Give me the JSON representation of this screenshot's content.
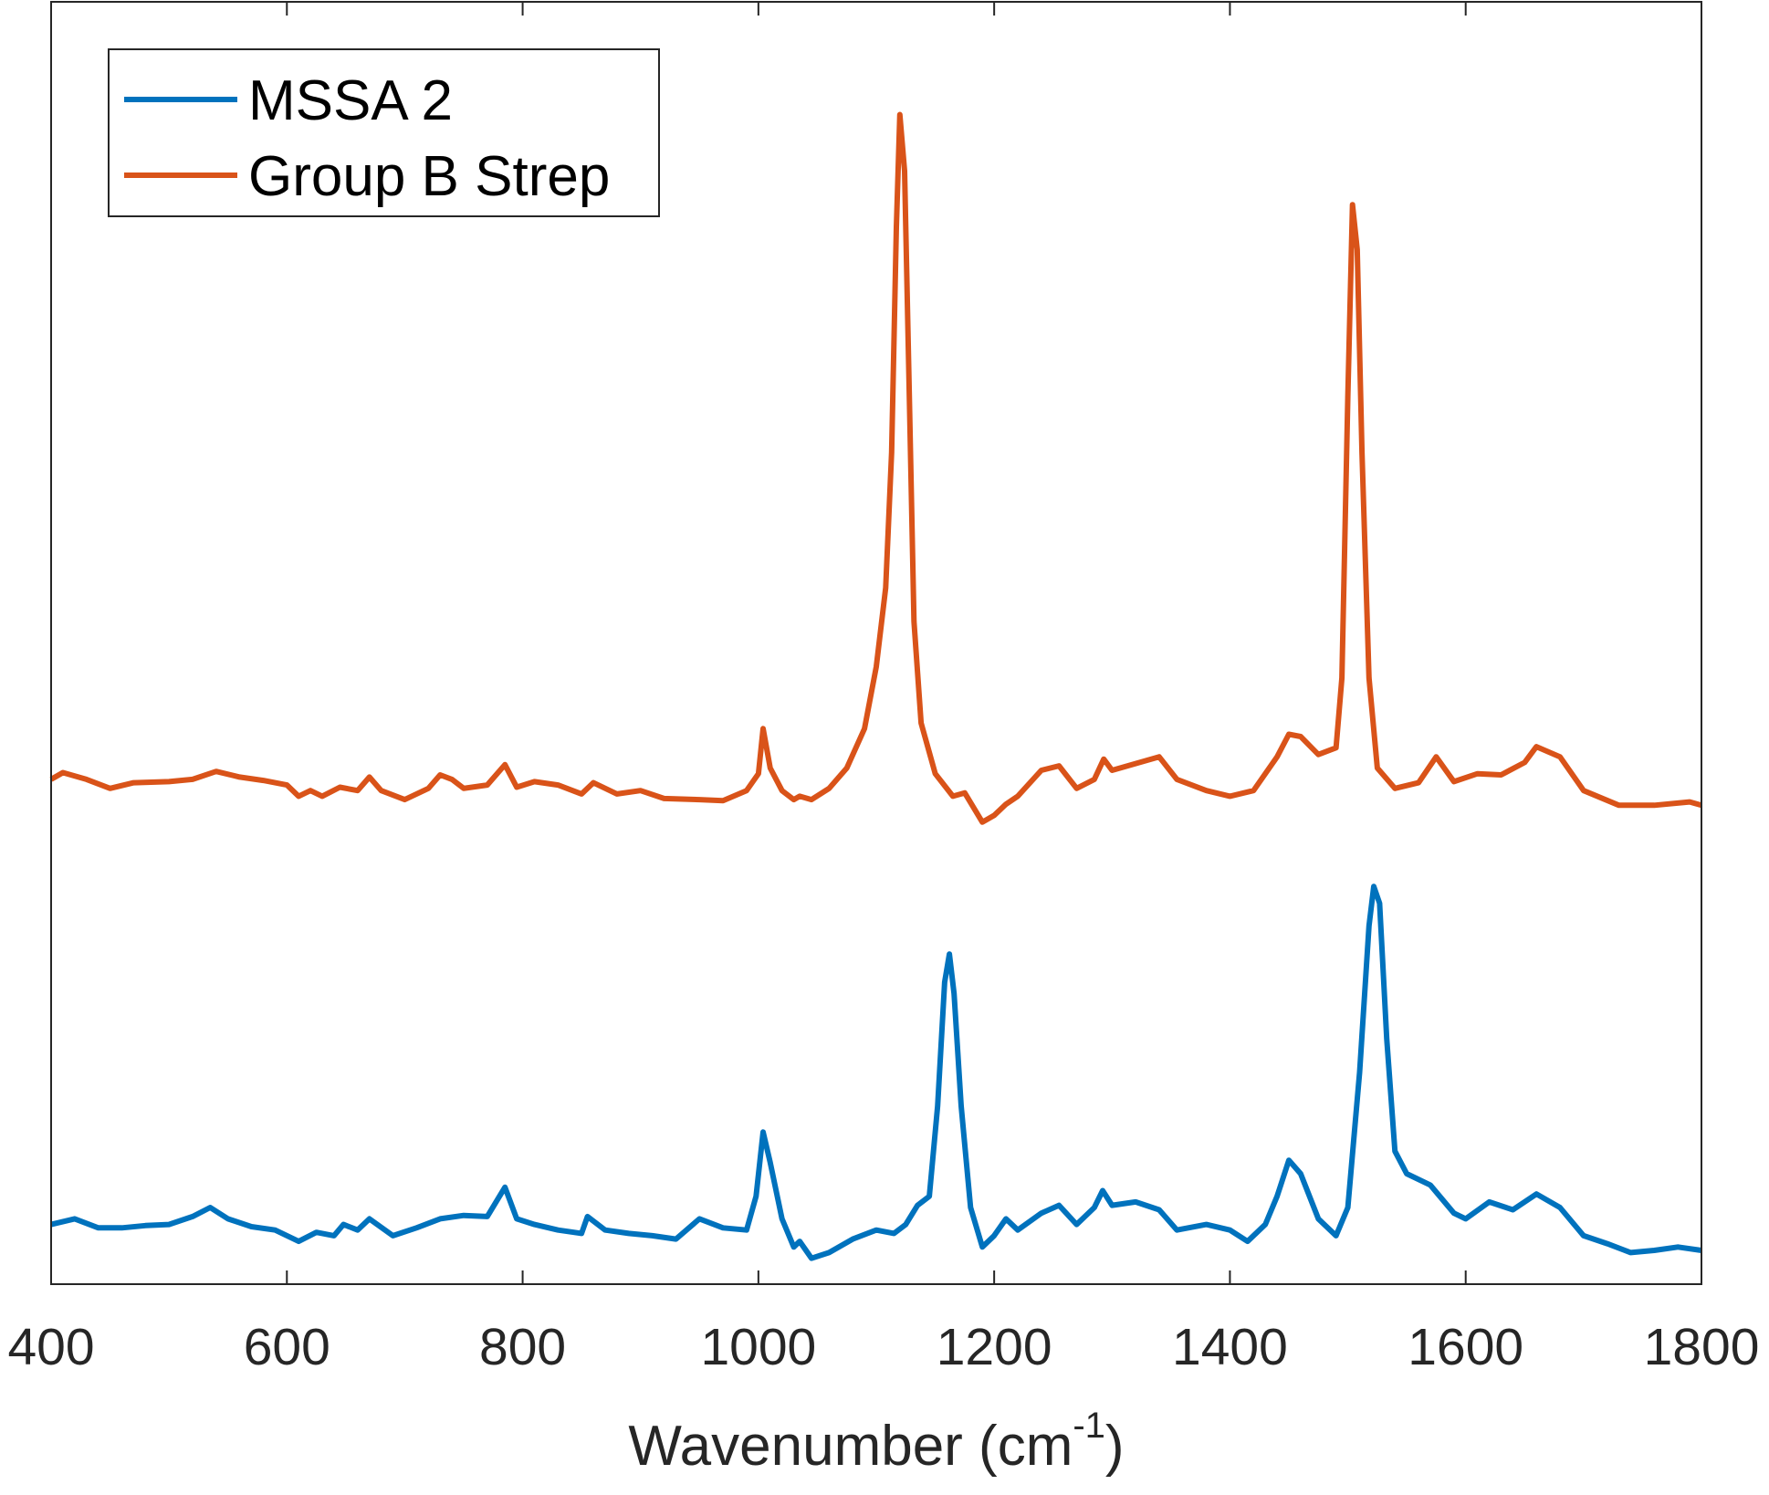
{
  "chart_data": {
    "type": "line",
    "x_label": {
      "text": "Wavenumber (cm",
      "superscript": "-1",
      "suffix": ")"
    },
    "xlim": [
      400,
      1800
    ],
    "xticks": [
      400,
      600,
      800,
      1000,
      1200,
      1400,
      1600,
      1800
    ],
    "ylim": [
      0,
      1138
    ],
    "legend": "upper-left",
    "series": [
      {
        "name": "MSSA 2",
        "color": "#0072BD",
        "x": [
          400,
          420,
          440,
          460,
          480,
          500,
          520,
          535,
          550,
          570,
          590,
          610,
          625,
          640,
          648,
          660,
          670,
          690,
          710,
          730,
          750,
          770,
          785,
          795,
          810,
          830,
          850,
          855,
          870,
          890,
          910,
          930,
          950,
          970,
          990,
          998,
          1004,
          1010,
          1020,
          1030,
          1035,
          1045,
          1060,
          1080,
          1100,
          1115,
          1125,
          1135,
          1145,
          1152,
          1158,
          1162,
          1166,
          1172,
          1180,
          1190,
          1200,
          1210,
          1220,
          1240,
          1255,
          1270,
          1285,
          1292,
          1300,
          1320,
          1340,
          1355,
          1380,
          1400,
          1415,
          1430,
          1440,
          1450,
          1460,
          1475,
          1490,
          1500,
          1510,
          1518,
          1522,
          1527,
          1533,
          1540,
          1550,
          1570,
          1590,
          1600,
          1620,
          1640,
          1660,
          1680,
          1700,
          1720,
          1740,
          1760,
          1780,
          1800
        ],
        "values": [
          53,
          58,
          50,
          50,
          52,
          53,
          60,
          68,
          58,
          51,
          48,
          38,
          46,
          43,
          53,
          48,
          58,
          43,
          50,
          58,
          61,
          60,
          86,
          58,
          53,
          48,
          45,
          60,
          48,
          45,
          43,
          40,
          58,
          50,
          48,
          78,
          135,
          108,
          58,
          33,
          38,
          23,
          28,
          40,
          48,
          45,
          53,
          70,
          78,
          158,
          268,
          293,
          258,
          158,
          68,
          33,
          43,
          58,
          48,
          63,
          70,
          53,
          68,
          83,
          70,
          73,
          66,
          48,
          53,
          48,
          38,
          53,
          78,
          110,
          98,
          58,
          43,
          68,
          188,
          318,
          353,
          338,
          218,
          118,
          98,
          88,
          63,
          58,
          73,
          66,
          80,
          68,
          43,
          36,
          28,
          30,
          33,
          30
        ]
      },
      {
        "name": "Group B Strep",
        "color": "#D95319",
        "x": [
          400,
          410,
          430,
          450,
          470,
          500,
          520,
          540,
          560,
          580,
          600,
          610,
          620,
          630,
          645,
          660,
          670,
          680,
          700,
          720,
          730,
          740,
          750,
          770,
          785,
          795,
          810,
          830,
          850,
          860,
          880,
          900,
          920,
          950,
          970,
          990,
          1000,
          1004,
          1010,
          1020,
          1030,
          1035,
          1045,
          1060,
          1075,
          1090,
          1100,
          1108,
          1113,
          1117,
          1120,
          1124,
          1128,
          1132,
          1138,
          1150,
          1165,
          1175,
          1190,
          1200,
          1210,
          1220,
          1240,
          1255,
          1270,
          1285,
          1293,
          1300,
          1320,
          1340,
          1355,
          1380,
          1400,
          1420,
          1440,
          1450,
          1460,
          1475,
          1490,
          1495,
          1500,
          1504,
          1508,
          1512,
          1518,
          1525,
          1540,
          1560,
          1575,
          1590,
          1610,
          1630,
          1650,
          1660,
          1680,
          1700,
          1730,
          1760,
          1790,
          1800
        ],
        "values": [
          448,
          454,
          448,
          440,
          445,
          446,
          448,
          455,
          450,
          447,
          443,
          433,
          438,
          433,
          441,
          438,
          450,
          438,
          430,
          440,
          452,
          448,
          440,
          443,
          461,
          441,
          446,
          443,
          435,
          445,
          435,
          438,
          431,
          430,
          429,
          438,
          453,
          493,
          458,
          438,
          430,
          433,
          430,
          440,
          458,
          493,
          548,
          618,
          738,
          938,
          1038,
          988,
          788,
          588,
          498,
          453,
          433,
          436,
          410,
          416,
          426,
          433,
          456,
          460,
          440,
          448,
          466,
          456,
          462,
          468,
          448,
          438,
          433,
          438,
          468,
          488,
          486,
          470,
          476,
          538,
          788,
          958,
          918,
          738,
          538,
          458,
          440,
          445,
          468,
          446,
          453,
          452,
          463,
          477,
          468,
          438,
          425,
          425,
          428,
          425
        ]
      }
    ]
  }
}
